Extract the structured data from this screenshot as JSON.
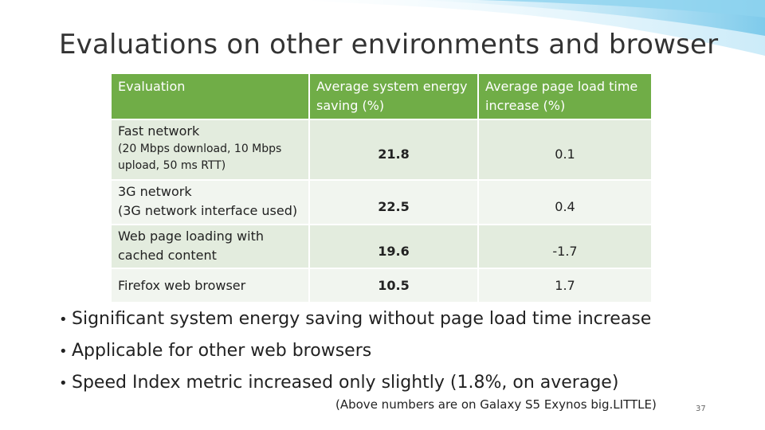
{
  "slide": {
    "title": "Evaluations on other environments and browser",
    "page_number": "37",
    "accent_color": "#70ad47"
  },
  "table": {
    "headers": [
      "Evaluation",
      "Average system energy saving (%)",
      "Average page load  time increase (%)"
    ],
    "rows": [
      {
        "label": "Fast network",
        "sublabel": "(20 Mbps download, 10 Mbps upload, 50 ms RTT)",
        "energy": "21.8",
        "load": "0.1"
      },
      {
        "label": "3G network",
        "sublabel": "(3G network interface used)",
        "energy": "22.5",
        "load": "0.4"
      },
      {
        "label": "Web page loading with cached content",
        "sublabel": "",
        "energy": "19.6",
        "load": "-1.7"
      },
      {
        "label": "Firefox web browser",
        "sublabel": "",
        "energy": "10.5",
        "load": "1.7"
      }
    ]
  },
  "bullets": [
    "Significant system energy saving without page load time increase",
    "Applicable for other web browsers",
    "Speed Index metric increased only slightly (1.8%, on average)"
  ],
  "footnote": "(Above numbers are on Galaxy S5 Exynos big.LITTLE)"
}
